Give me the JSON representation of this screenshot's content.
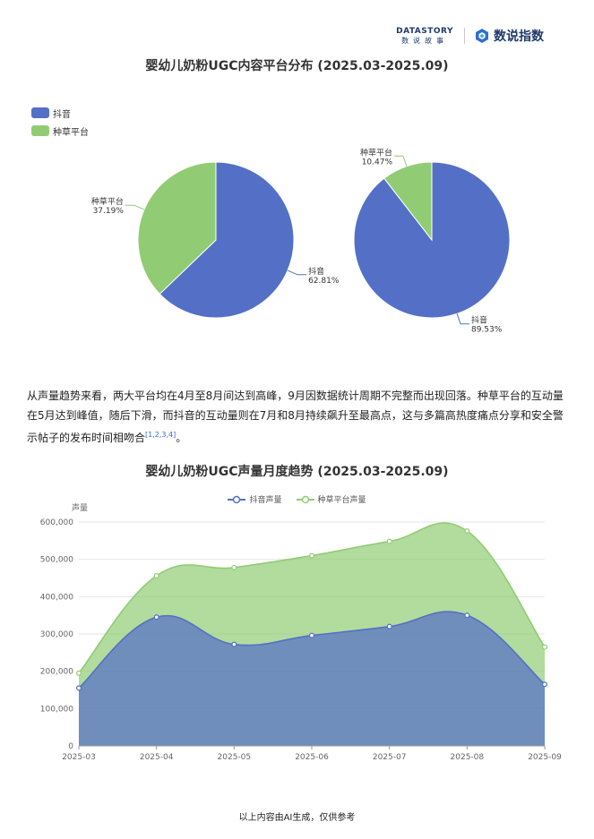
{
  "header": {
    "logo_en": "DATASTORY",
    "logo_cn": "数说故事",
    "brand_name": "数说指数"
  },
  "colors": {
    "douyin": "#5470c6",
    "zhongcao": "#91cc75"
  },
  "pie_section": {
    "title": "婴幼儿奶粉UGC内容平台分布 (2025.03-2025.09)",
    "legend": [
      "抖音",
      "种草平台"
    ]
  },
  "paragraph": {
    "text": "从声量趋势来看，两大平台均在4月至8月间达到高峰，9月因数据统计周期不完整而出现回落。种草平台的互动量在5月达到峰值，随后下滑，而抖音的互动量则在7月和8月持续飙升至最高点，这与多篇高热度痛点分享和安全警示帖子的发布时间相吻合",
    "citation": "[1,2,3,4]",
    "end": "。"
  },
  "line_section": {
    "title": "婴幼儿奶粉UGC声量月度趋势 (2025.03-2025.09)",
    "y_axis_name": "声量"
  },
  "footer": "以上内容由AI生成，仅供参考",
  "chart_data": [
    {
      "type": "pie",
      "slices": [
        {
          "name": "抖音",
          "value": 62.81,
          "label_pct": "62.81%"
        },
        {
          "name": "种草平台",
          "value": 37.19,
          "label_pct": "37.19%"
        }
      ]
    },
    {
      "type": "pie",
      "slices": [
        {
          "name": "抖音",
          "value": 89.53,
          "label_pct": "89.53%"
        },
        {
          "name": "种草平台",
          "value": 10.47,
          "label_pct": "10.47%"
        }
      ]
    },
    {
      "type": "area",
      "categories": [
        "2025-03",
        "2025-04",
        "2025-05",
        "2025-06",
        "2025-07",
        "2025-08",
        "2025-09"
      ],
      "series": [
        {
          "name": "抖音声量",
          "values": [
            155000,
            345000,
            272000,
            296000,
            320000,
            350000,
            165000
          ]
        },
        {
          "name": "种草平台声量",
          "values": [
            195000,
            456000,
            478000,
            510000,
            548000,
            576000,
            265000
          ]
        }
      ],
      "ylim": [
        0,
        600000
      ],
      "yticks": [
        0,
        100000,
        200000,
        300000,
        400000,
        500000,
        600000
      ],
      "ytick_labels": [
        "0",
        "100,000",
        "200,000",
        "300,000",
        "400,000",
        "500,000",
        "600,000"
      ],
      "grid": true,
      "legend": "top-center"
    }
  ]
}
